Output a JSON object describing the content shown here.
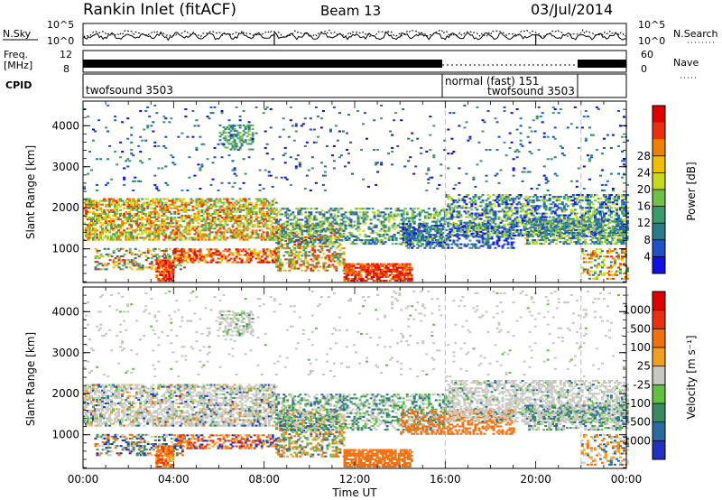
{
  "header": {
    "station": "Rankin Inlet (fitACF)",
    "beam": "Beam 13",
    "date": "03/Jul/2014"
  },
  "nsky_panel": {
    "left_label": "N.Sky",
    "right_label": "N.Search",
    "left_ticks": [
      "10^5",
      "10^0"
    ],
    "right_ticks": [
      "10^5",
      "10^0"
    ]
  },
  "freq_panel": {
    "left_label_1": "Freq.",
    "left_label_2": "[MHz]",
    "right_label": "Nave",
    "left_ticks": [
      "12",
      "8"
    ],
    "right_ticks": [
      "60",
      "0"
    ]
  },
  "cpid_panel": {
    "label": "CPID",
    "modes": [
      {
        "text": "twofsound 3503",
        "start_hour": 0,
        "end_hour": 16
      },
      {
        "text": "normal (fast) 151",
        "start_hour": 16,
        "end_hour": 22
      },
      {
        "text": "twofsound 3503",
        "start_hour": 22,
        "end_hour": 24
      }
    ]
  },
  "chart_data": [
    {
      "type": "heatmap",
      "title": "",
      "xlabel": "",
      "ylabel": "Slant Range [km]",
      "xlim": [
        0,
        24
      ],
      "ylim": [
        180,
        4600
      ],
      "yticks": [
        "1000",
        "2000",
        "3000",
        "4000"
      ],
      "colorbar": {
        "label": "Power [dB]",
        "ticks": [
          "4",
          "8",
          "12",
          "16",
          "20",
          "24",
          "28"
        ],
        "colors": [
          "#1010e6",
          "#2050c8",
          "#2a7a8a",
          "#3c9a6a",
          "#70c048",
          "#c8d820",
          "#f0c000",
          "#f08000",
          "#e83010",
          "#e00000"
        ]
      }
    },
    {
      "type": "heatmap",
      "title": "",
      "xlabel": "Time UT",
      "ylabel": "Slant Range [km]",
      "xlim": [
        0,
        24
      ],
      "ylim": [
        180,
        4600
      ],
      "xticks": [
        "00:00",
        "04:00",
        "08:00",
        "12:00",
        "16:00",
        "20:00",
        "00:00"
      ],
      "yticks": [
        "1000",
        "2000",
        "3000",
        "4000"
      ],
      "colorbar": {
        "label": "Velocity [m s⁻¹]",
        "ticks": [
          "1000",
          "500",
          "100",
          "25",
          "-25",
          "-100",
          "-500",
          "-1000"
        ],
        "colors": [
          "#2030c0",
          "#2a6aa0",
          "#3a8a60",
          "#60c040",
          "#c8c8c0",
          "#f0a020",
          "#f07010",
          "#e83010",
          "#e00000"
        ]
      }
    }
  ]
}
